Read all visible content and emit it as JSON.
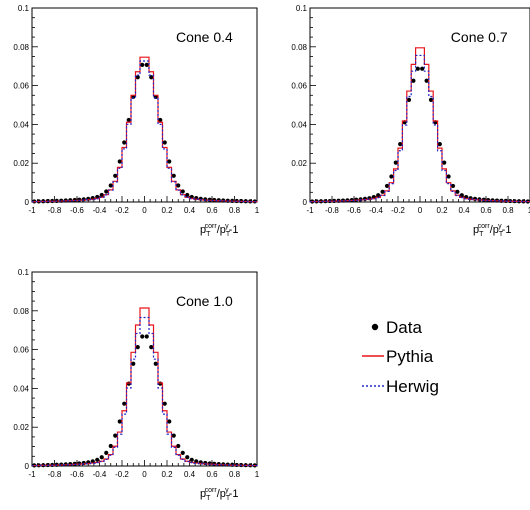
{
  "x_axis_title": {
    "p": "p",
    "sub_T": "T",
    "sup_corr": "corr",
    "slash": "/p",
    "sup_gamma": "γ",
    "tail": "-1"
  },
  "legend": {
    "data": "Data",
    "pythia": "Pythia",
    "herwig": "Herwig"
  },
  "colors": {
    "data": "#000000",
    "pythia": "#e8141b",
    "herwig": "#2323c8"
  },
  "chart_data": [
    {
      "type": "line",
      "label": "Cone 0.4",
      "xlim": [
        -1,
        1
      ],
      "ylim": [
        0,
        0.1
      ],
      "xticks": [
        "-1",
        "-0.8",
        "-0.6",
        "-0.4",
        "-0.2",
        "0",
        "0.2",
        "0.4",
        "0.6",
        "0.8",
        "1"
      ],
      "yticks": [
        "0",
        "0.02",
        "0.04",
        "0.06",
        "0.08",
        "0.1"
      ],
      "mu": 0.0,
      "series": [
        {
          "name": "Data",
          "style": "markers",
          "peak": 0.072,
          "sigma": 0.135,
          "tail": 0.15
        },
        {
          "name": "Pythia",
          "style": "solid-step",
          "peak": 0.076,
          "sigma": 0.125,
          "tail": 0.1
        },
        {
          "name": "Herwig",
          "style": "dashed-step",
          "peak": 0.074,
          "sigma": 0.125,
          "tail": 0.1
        }
      ]
    },
    {
      "type": "line",
      "label": "Cone 0.7",
      "xlim": [
        -1,
        1
      ],
      "ylim": [
        0,
        0.1
      ],
      "xticks": [
        "-1",
        "-0.8",
        "-0.6",
        "-0.4",
        "-0.2",
        "0",
        "0.2",
        "0.4",
        "0.6",
        "0.8",
        "1"
      ],
      "yticks": [
        "0",
        "0.02",
        "0.04",
        "0.06",
        "0.08",
        "0.1"
      ],
      "mu": 0.0,
      "series": [
        {
          "name": "Data",
          "style": "markers",
          "peak": 0.07,
          "sigma": 0.135,
          "tail": 0.15
        },
        {
          "name": "Pythia",
          "style": "solid-step",
          "peak": 0.081,
          "sigma": 0.12,
          "tail": 0.1
        },
        {
          "name": "Herwig",
          "style": "dashed-step",
          "peak": 0.077,
          "sigma": 0.12,
          "tail": 0.1
        }
      ]
    },
    {
      "type": "line",
      "label": "Cone 1.0",
      "xlim": [
        -1,
        1
      ],
      "ylim": [
        0,
        0.1
      ],
      "xticks": [
        "-1",
        "-0.8",
        "-0.6",
        "-0.4",
        "-0.2",
        "0",
        "0.2",
        "0.4",
        "0.6",
        "0.8",
        "1"
      ],
      "yticks": [
        "0",
        "0.02",
        "0.04",
        "0.06",
        "0.08",
        "0.1"
      ],
      "mu": 0.0,
      "series": [
        {
          "name": "Data",
          "style": "markers",
          "peak": 0.068,
          "sigma": 0.145,
          "tail": 0.18
        },
        {
          "name": "Pythia",
          "style": "solid-step",
          "peak": 0.083,
          "sigma": 0.12,
          "tail": 0.1
        },
        {
          "name": "Herwig",
          "style": "dashed-step",
          "peak": 0.078,
          "sigma": 0.12,
          "tail": 0.1
        }
      ]
    }
  ]
}
